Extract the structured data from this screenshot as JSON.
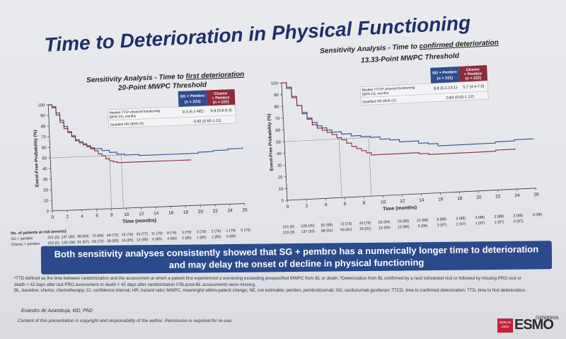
{
  "slide": {
    "title": "Time to Deterioration in Physical Functioning",
    "banner_line1": "Both sensitivity analyses consistently showed that SG + pembro has a numerically longer time to deterioration",
    "banner_line2": "and may delay the onset of decline in physical functioning",
    "footnote_lines": [
      "ᵃTTD defined as the time between randomization and the assessment at which a patient first experienced a worsening exceeding prespecified MWPC from BL or death. ᵇDeterioration from BL confirmed by a next scheduled visit or followed by missing PRO visit or",
      "death < 42 days after last PRO assessment or death < 42 days after randomization if BL/post-BL assessments were missing.",
      "BL, baseline; chemo, chemotherapy; CI, confidence interval; HR, hazard ratio; MWPC, meaningful within-patient change; NE, not estimable; pembro, pembrolizumab; SG, sacituzumab govitecan; TTCD, time to confirmed deterioration; TTD, time to first deterioration."
    ],
    "author": "Evandro de Azambuja, MD, PhD",
    "copyright": "Content of this presentation is copyright and responsibility of the author. Permission is required for re-use.",
    "logo": {
      "badge": "BERLIN 2025",
      "name": "ESMO",
      "suffix": "congress"
    }
  },
  "colors": {
    "sg": "#2e4d8f",
    "chemo": "#8c2b3a",
    "banner": "#2a4a8c",
    "title": "#1e2f6b"
  },
  "chart_data": [
    {
      "type": "line",
      "subtitle_prefix": "Sensitivity Analysis - Time to ",
      "subtitle_emph": "first deterioration",
      "subtitle2": "20-Point MWPC Threshold",
      "xlabel": "Time (months)",
      "ylabel": "Event-Free Probability (%)",
      "xlim": [
        0,
        26
      ],
      "ylim": [
        0,
        100
      ],
      "xticks": [
        0,
        2,
        4,
        6,
        8,
        10,
        12,
        14,
        16,
        18,
        20,
        22,
        24,
        26
      ],
      "yticks": [
        0,
        10,
        20,
        30,
        40,
        50,
        60,
        70,
        80,
        90,
        100
      ],
      "median_line_at": 50,
      "legend_col1": "SG + Pembro\n(n = 221)",
      "legend_col2": "Chemo + Pembro\n(n = 222)",
      "row1_label": "Median TTDᵃ physical functioning (95% CI), months",
      "row1_col1": "9.3 (6.1-NE)",
      "row1_col2": "6.9 (5.6-8.3)",
      "row2_label": "Stratified HR (95% CI)",
      "row2_value": "0.82 (0.60-1.11)",
      "risk_title": "No. of patients at risk (events)",
      "risk_labels": [
        "SG + pembro",
        "Chemo + pembro"
      ],
      "risk_rows": [
        [
          "221 (0)",
          "137 (35)",
          "98 (60)",
          "75 (66)",
          "48 (72)",
          "24 (76)",
          "20 (77)",
          "11 (78)",
          "8 (79)",
          "3 (79)",
          "3 (79)",
          "2 (79)",
          "1 (79)",
          "0 (79)"
        ],
        [
          "222 (0)",
          "133 (36)",
          "91 (57)",
          "59 (72)",
          "30 (83)",
          "16 (85)",
          "12 (85)",
          "6 (85)",
          "4 (85)",
          "2 (85)",
          "1 (85)",
          "1 (85)",
          "0 (85)",
          ""
        ]
      ],
      "series": [
        {
          "name": "SG + Pembro",
          "points": [
            [
              0,
              100
            ],
            [
              0.5,
              98
            ],
            [
              1,
              92
            ],
            [
              1.5,
              85
            ],
            [
              2,
              79
            ],
            [
              2.5,
              74
            ],
            [
              3,
              70
            ],
            [
              3.5,
              66
            ],
            [
              4,
              64
            ],
            [
              4.5,
              62
            ],
            [
              5,
              60
            ],
            [
              5.5,
              58
            ],
            [
              6,
              57
            ],
            [
              7,
              55
            ],
            [
              8,
              53
            ],
            [
              9,
              51
            ],
            [
              10,
              50
            ],
            [
              12,
              49
            ],
            [
              14,
              49
            ],
            [
              16,
              49
            ],
            [
              18,
              49
            ],
            [
              20,
              50
            ],
            [
              22,
              51
            ],
            [
              24,
              52
            ],
            [
              26,
              53
            ]
          ]
        },
        {
          "name": "Chemo + Pembro",
          "points": [
            [
              0,
              100
            ],
            [
              0.5,
              97
            ],
            [
              1,
              90
            ],
            [
              1.5,
              83
            ],
            [
              2,
              77
            ],
            [
              2.5,
              73
            ],
            [
              3,
              69
            ],
            [
              3.5,
              65
            ],
            [
              4,
              63
            ],
            [
              4.5,
              61
            ],
            [
              5,
              59
            ],
            [
              5.5,
              57
            ],
            [
              6,
              55
            ],
            [
              6.5,
              52
            ],
            [
              7,
              50
            ],
            [
              7.5,
              47
            ],
            [
              8,
              45
            ],
            [
              8.5,
              44
            ],
            [
              9,
              43
            ],
            [
              12,
              43
            ],
            [
              14,
              43
            ],
            [
              16,
              43
            ],
            [
              18,
              43
            ],
            [
              19,
              43
            ]
          ]
        }
      ]
    },
    {
      "type": "line",
      "subtitle_prefix": "Sensitivity Analysis - Time to ",
      "subtitle_emph": "confirmed deterioration",
      "subtitle2": "13.33-Point MWPC Threshold",
      "xlabel": "Time (months)",
      "ylabel": "Event-Free Probability (%)",
      "xlim": [
        0,
        26
      ],
      "ylim": [
        0,
        100
      ],
      "xticks": [
        0,
        2,
        4,
        6,
        8,
        10,
        12,
        14,
        16,
        18,
        20,
        22,
        24,
        26
      ],
      "yticks": [
        0,
        10,
        20,
        30,
        40,
        50,
        60,
        70,
        80,
        90,
        100
      ],
      "median_line_at": 50,
      "legend_col1": "SG + Pembro\n(n = 221)",
      "legend_col2": "Chemo + Pembro\n(n = 222)",
      "row1_label": "Median TTCDᵇ physical functioning (95% CI), months",
      "row1_col1": "8.8 (5.1-13.1)",
      "row1_col2": "5.7 (4.4-7.0)",
      "row2_label": "Stratified HR (95% CI)",
      "row2_value": "0.84 (0.62-1.12)",
      "risk_title": "",
      "risk_labels": [
        "",
        ""
      ],
      "risk_rows": [
        [
          "221 (0)",
          "128 (45)",
          "92 (68)",
          "72 (73)",
          "45 (79)",
          "26 (84)",
          "20 (85)",
          "12 (86)",
          "8 (88)",
          "3 (88)",
          "3 (88)",
          "2 (88)",
          "2 (88)",
          "0 (88)"
        ],
        [
          "222 (0)",
          "137 (33)",
          "88 (61)",
          "53 (81)",
          "29 (91)",
          "15 (96)",
          "12 (96)",
          "5 (96)",
          "3 (97)",
          "2 (97)",
          "1 (97)",
          "1 (97)",
          "0 (97)",
          ""
        ]
      ],
      "series": [
        {
          "name": "SG + Pembro",
          "points": [
            [
              0,
              100
            ],
            [
              0.5,
              95
            ],
            [
              1,
              87
            ],
            [
              1.5,
              80
            ],
            [
              2,
              74
            ],
            [
              2.5,
              69
            ],
            [
              3,
              65
            ],
            [
              3.5,
              62
            ],
            [
              4,
              60
            ],
            [
              4.5,
              58
            ],
            [
              5,
              56
            ],
            [
              6,
              54
            ],
            [
              7,
              52
            ],
            [
              8,
              51
            ],
            [
              9,
              50
            ],
            [
              10,
              48
            ],
            [
              11,
              47
            ],
            [
              12,
              45
            ],
            [
              14,
              43
            ],
            [
              15,
              42
            ],
            [
              16,
              40
            ],
            [
              18,
              40
            ],
            [
              20,
              40
            ],
            [
              22,
              41
            ],
            [
              24,
              42
            ],
            [
              26,
              42
            ]
          ]
        },
        {
          "name": "Chemo + Pembro",
          "points": [
            [
              0,
              100
            ],
            [
              0.5,
              96
            ],
            [
              1,
              88
            ],
            [
              1.5,
              80
            ],
            [
              2,
              73
            ],
            [
              2.5,
              68
            ],
            [
              3,
              63
            ],
            [
              3.5,
              60
            ],
            [
              4,
              58
            ],
            [
              4.5,
              56
            ],
            [
              5,
              54
            ],
            [
              5.5,
              51
            ],
            [
              6,
              49
            ],
            [
              6.5,
              46
            ],
            [
              7,
              43
            ],
            [
              7.5,
              41
            ],
            [
              8,
              39
            ],
            [
              8.5,
              37
            ],
            [
              9,
              35
            ],
            [
              10,
              35
            ],
            [
              12,
              35
            ],
            [
              14,
              34
            ],
            [
              15,
              33
            ],
            [
              16,
              33
            ],
            [
              18,
              33
            ],
            [
              20,
              33
            ],
            [
              22,
              34
            ],
            [
              24,
              35
            ]
          ]
        }
      ]
    }
  ]
}
